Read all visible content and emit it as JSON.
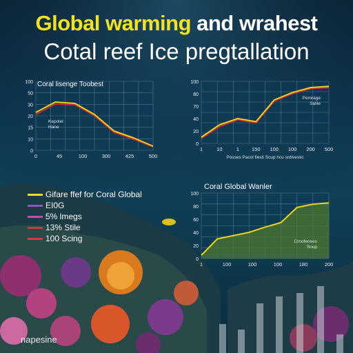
{
  "heading": {
    "line1_highlight": "Global warming",
    "line1_rest": "and wrahest",
    "line2": "Cotal  reef Ice pregtallation"
  },
  "footer": {
    "logo_text": "napesine"
  },
  "legend": {
    "items": [
      {
        "label": "Gifare ffef for Coral Global",
        "color": "#e6de2a"
      },
      {
        "label": "EI0G",
        "color": "#9b4fb8"
      },
      {
        "label": "5% lmegs",
        "color": "#c04fa8"
      },
      {
        "label": "13% Stile",
        "color": "#c23e3e"
      },
      {
        "label": "100 Scing",
        "color": "#d33a3a"
      }
    ]
  },
  "colors": {
    "line_yellow": "#f0d21a",
    "line_red": "#c22a3a",
    "area_green": "#4f7a2e",
    "grid": "#6a8ea8",
    "panel": "#0e3a55"
  },
  "chart_data": [
    {
      "type": "line",
      "title": "Coral lisenge Toobest",
      "annotation": "Kepolel\nHane",
      "x_ticks": [
        "0",
        "45",
        "100",
        "300",
        "425",
        "500"
      ],
      "y_ticks": [
        "0",
        "10",
        "15",
        "20",
        "30",
        "50",
        "100"
      ],
      "x": [
        0,
        1,
        2,
        3,
        4,
        5,
        6
      ],
      "series": [
        {
          "values": [
            55,
            70,
            68,
            52,
            28,
            18,
            6
          ]
        },
        {
          "values": [
            52,
            67,
            66,
            50,
            26,
            16,
            5
          ]
        }
      ],
      "ylim": [
        0,
        100
      ]
    },
    {
      "type": "line",
      "annotation": "Pemrage\nSalile",
      "x_ticks": [
        "1",
        "10",
        "1",
        "150",
        "100",
        "100",
        "200",
        "500"
      ],
      "y_ticks": [
        "0",
        "20",
        "40",
        "70",
        "80",
        "100"
      ],
      "x_axis_caption": "Posses Pacol fiesti Scup hcu srdivestic",
      "x": [
        0,
        1,
        2,
        3,
        4,
        5,
        6,
        7
      ],
      "series": [
        {
          "values": [
            10,
            30,
            40,
            35,
            70,
            82,
            90,
            92
          ]
        },
        {
          "values": [
            8,
            27,
            38,
            33,
            68,
            80,
            88,
            90
          ]
        }
      ],
      "ylim": [
        0,
        100
      ]
    },
    {
      "type": "area",
      "title": "Coral Global Wanler",
      "annotation": "Crnofenees\nSoup",
      "x_ticks": [
        "1",
        "100",
        "100",
        "100",
        "180",
        "200"
      ],
      "y_ticks": [
        "0",
        "20",
        "40",
        "60",
        "80",
        "100"
      ],
      "x": [
        0,
        1,
        2,
        3,
        4,
        5,
        6,
        7,
        8
      ],
      "series": [
        {
          "values": [
            5,
            30,
            35,
            40,
            48,
            55,
            78,
            83,
            85
          ]
        }
      ],
      "ylim": [
        0,
        100
      ]
    }
  ]
}
